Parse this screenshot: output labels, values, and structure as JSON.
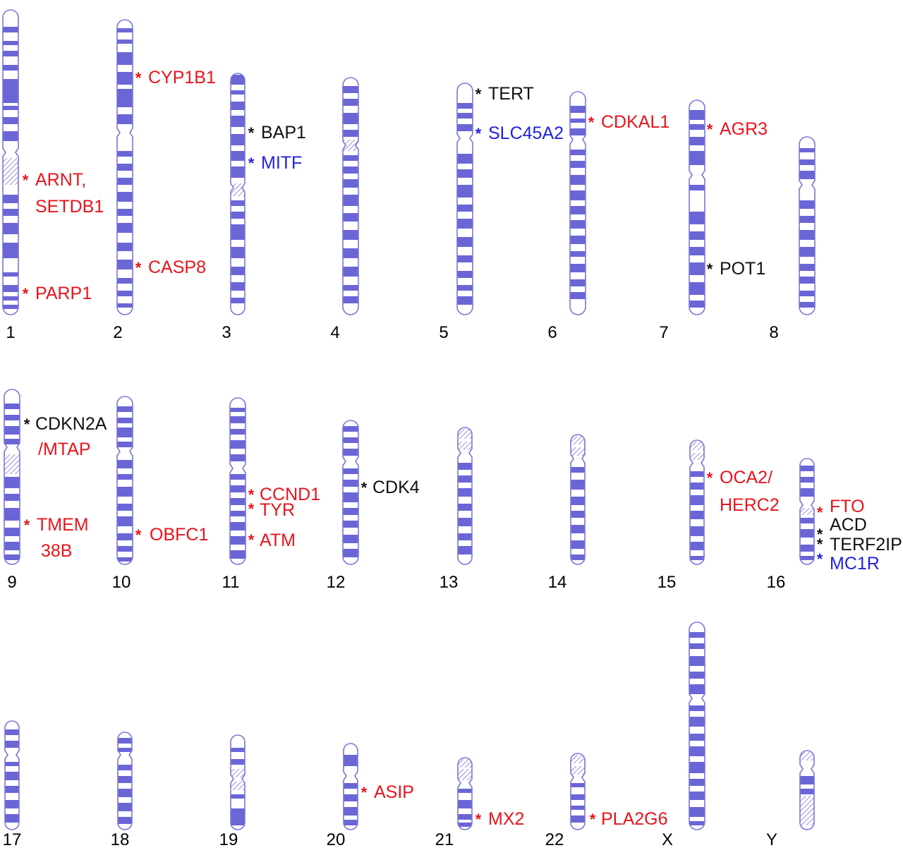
{
  "colors": {
    "band": "#6B66D6",
    "outline": "#7A76D8",
    "risk_red": "#E8141C",
    "risk_black": "#111111",
    "risk_blue": "#2222DD"
  },
  "chromosomes": [
    {
      "id": "chr1",
      "label": "1",
      "genes": [
        {
          "id": "arnt",
          "lines": [
            "ARNT,",
            "SETDB1"
          ],
          "color": "red"
        },
        {
          "id": "parp1",
          "lines": [
            "PARP1"
          ],
          "color": "red"
        }
      ]
    },
    {
      "id": "chr2",
      "label": "2",
      "genes": [
        {
          "id": "cyp1b1",
          "lines": [
            "CYP1B1"
          ],
          "color": "red"
        },
        {
          "id": "casp8",
          "lines": [
            "CASP8"
          ],
          "color": "red"
        }
      ]
    },
    {
      "id": "chr3",
      "label": "3",
      "genes": [
        {
          "id": "bap1",
          "lines": [
            "BAP1"
          ],
          "color": "black"
        },
        {
          "id": "mitf",
          "lines": [
            "MITF"
          ],
          "color": "blue"
        }
      ]
    },
    {
      "id": "chr4",
      "label": "4",
      "genes": []
    },
    {
      "id": "chr5",
      "label": "5",
      "genes": [
        {
          "id": "tert",
          "lines": [
            "TERT"
          ],
          "color": "black"
        },
        {
          "id": "slc45a2",
          "lines": [
            "SLC45A2"
          ],
          "color": "blue"
        }
      ]
    },
    {
      "id": "chr6",
      "label": "6",
      "genes": [
        {
          "id": "cdkal1",
          "lines": [
            "CDKAL1"
          ],
          "color": "red"
        }
      ]
    },
    {
      "id": "chr7",
      "label": "7",
      "genes": [
        {
          "id": "agr3",
          "lines": [
            "AGR3"
          ],
          "color": "red"
        },
        {
          "id": "pot1",
          "lines": [
            "POT1"
          ],
          "color": "black"
        }
      ]
    },
    {
      "id": "chr8",
      "label": "8",
      "genes": []
    },
    {
      "id": "chr9",
      "label": "9",
      "genes": [
        {
          "id": "cdkn2a",
          "lines": [
            "CDKN2A",
            "/MTAP"
          ],
          "color": "black",
          "second_color": "red"
        },
        {
          "id": "tmem38b",
          "lines": [
            "TMEM",
            "38B"
          ],
          "color": "red"
        }
      ]
    },
    {
      "id": "chr10",
      "label": "10",
      "genes": [
        {
          "id": "obfc1",
          "lines": [
            "OBFC1"
          ],
          "color": "red"
        }
      ]
    },
    {
      "id": "chr11",
      "label": "11",
      "genes": [
        {
          "id": "ccnd1",
          "lines": [
            "CCND1"
          ],
          "color": "red"
        },
        {
          "id": "tyr",
          "lines": [
            "TYR"
          ],
          "color": "red"
        },
        {
          "id": "atm",
          "lines": [
            "ATM"
          ],
          "color": "red"
        }
      ]
    },
    {
      "id": "chr12",
      "label": "12",
      "genes": [
        {
          "id": "cdk4",
          "lines": [
            "CDK4"
          ],
          "color": "black"
        }
      ]
    },
    {
      "id": "chr13",
      "label": "13",
      "genes": []
    },
    {
      "id": "chr14",
      "label": "14",
      "genes": []
    },
    {
      "id": "chr15",
      "label": "15",
      "genes": [
        {
          "id": "oca2",
          "lines": [
            "OCA2/",
            "HERC2"
          ],
          "color": "red"
        }
      ]
    },
    {
      "id": "chr16",
      "label": "16",
      "genes": [
        {
          "id": "fto",
          "lines": [
            "FTO"
          ],
          "color": "red"
        },
        {
          "id": "acd",
          "lines": [
            "ACD"
          ],
          "color": "black"
        },
        {
          "id": "terf2ip",
          "lines": [
            "TERF2IP"
          ],
          "color": "black"
        },
        {
          "id": "mc1r",
          "lines": [
            "MC1R"
          ],
          "color": "blue"
        }
      ]
    },
    {
      "id": "chr17",
      "label": "17",
      "genes": []
    },
    {
      "id": "chr18",
      "label": "18",
      "genes": []
    },
    {
      "id": "chr19",
      "label": "19",
      "genes": []
    },
    {
      "id": "chr20",
      "label": "20",
      "genes": [
        {
          "id": "asip",
          "lines": [
            "ASIP"
          ],
          "color": "red"
        }
      ]
    },
    {
      "id": "chr21",
      "label": "21",
      "genes": [
        {
          "id": "mx2",
          "lines": [
            "MX2"
          ],
          "color": "red"
        }
      ]
    },
    {
      "id": "chr22",
      "label": "22",
      "genes": [
        {
          "id": "pla2g6",
          "lines": [
            "PLA2G6"
          ],
          "color": "red"
        }
      ]
    },
    {
      "id": "chrX",
      "label": "X",
      "genes": []
    },
    {
      "id": "chrY",
      "label": "Y",
      "genes": []
    }
  ]
}
